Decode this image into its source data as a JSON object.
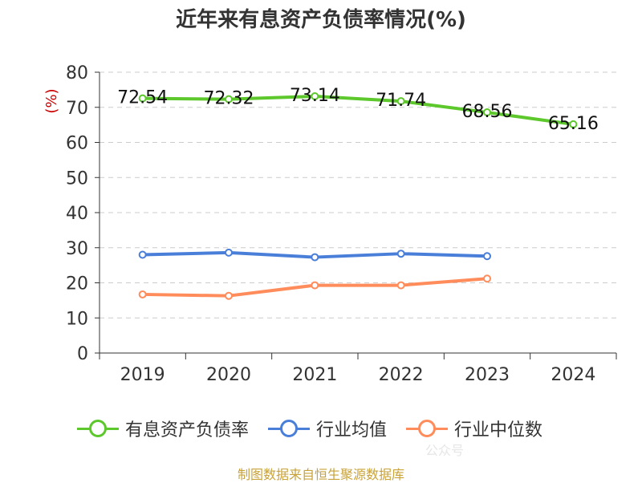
{
  "title": "近年来有息资产负债率情况(%)",
  "source": "制图数据来自恒生聚源数据库",
  "watermark": "公众号",
  "colors": {
    "green": "#5cc82b",
    "blue": "#4a7fd9",
    "orange": "#ff8c5a",
    "axis": "#333333",
    "grid": "#cccccc",
    "ylabel": "#cc0000"
  },
  "chart_data": {
    "type": "line",
    "title": "近年来有息资产负债率情况(%)",
    "ylabel": "(%)",
    "xlabel": "",
    "ylim": [
      0,
      80
    ],
    "yticks": [
      "0",
      "10",
      "20",
      "30",
      "40",
      "50",
      "60",
      "70",
      "80"
    ],
    "categories": [
      "2019",
      "2020",
      "2021",
      "2022",
      "2023",
      "2024"
    ],
    "grid": true,
    "legend_position": "bottom",
    "series": [
      {
        "name": "有息资产负债率",
        "color": "#5cc82b",
        "values": [
          72.54,
          72.32,
          73.14,
          71.74,
          68.56,
          65.16
        ],
        "labels": [
          "72.54",
          "72.32",
          "73.14",
          "71.74",
          "68.56",
          "65.16"
        ]
      },
      {
        "name": "行业均值",
        "color": "#4a7fd9",
        "values": [
          28.0,
          28.6,
          27.3,
          28.3,
          27.6,
          null
        ]
      },
      {
        "name": "行业中位数",
        "color": "#ff8c5a",
        "values": [
          16.7,
          16.3,
          19.3,
          19.3,
          21.2,
          null
        ]
      }
    ]
  }
}
